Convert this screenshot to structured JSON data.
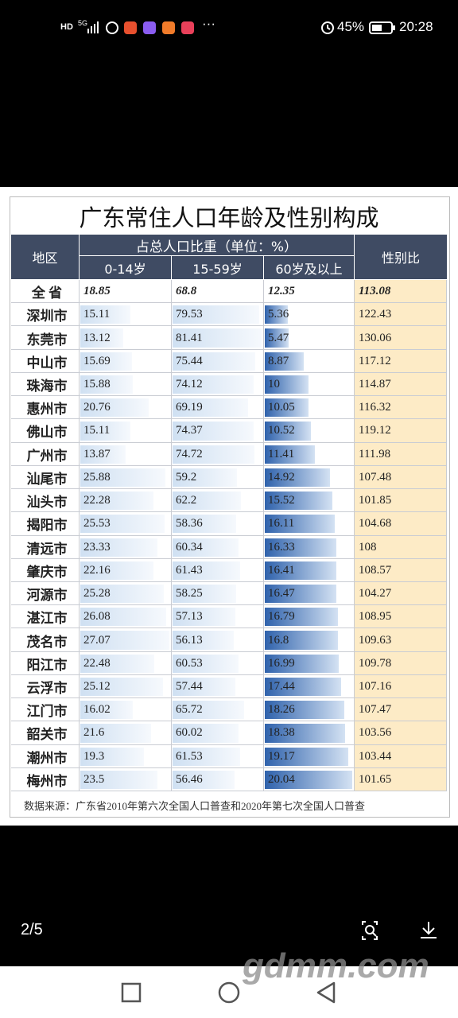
{
  "status_bar": {
    "hd": "HD",
    "network": "5G",
    "more": "···",
    "battery": "45%",
    "time": "20:28"
  },
  "table": {
    "title": "广东常住人口年龄及性别构成",
    "header": {
      "region": "地区",
      "group": "占总人口比重（单位：%）",
      "columns": [
        "0-14岁",
        "15-59岁",
        "60岁及以上"
      ],
      "sex_ratio": "性别比"
    },
    "rows": [
      [
        "全 省",
        18.85,
        68.8,
        12.35,
        113.08
      ],
      [
        "深圳市",
        15.11,
        79.53,
        5.36,
        122.43
      ],
      [
        "东莞市",
        13.12,
        81.41,
        5.47,
        130.06
      ],
      [
        "中山市",
        15.69,
        75.44,
        8.87,
        117.12
      ],
      [
        "珠海市",
        15.88,
        74.12,
        10,
        114.87
      ],
      [
        "惠州市",
        20.76,
        69.19,
        10.05,
        116.32
      ],
      [
        "佛山市",
        15.11,
        74.37,
        10.52,
        119.12
      ],
      [
        "广州市",
        13.87,
        74.72,
        11.41,
        111.98
      ],
      [
        "汕尾市",
        25.88,
        59.2,
        14.92,
        107.48
      ],
      [
        "汕头市",
        22.28,
        62.2,
        15.52,
        101.85
      ],
      [
        "揭阳市",
        25.53,
        58.36,
        16.11,
        104.68
      ],
      [
        "清远市",
        23.33,
        60.34,
        16.33,
        108
      ],
      [
        "肇庆市",
        22.16,
        61.43,
        16.41,
        108.57
      ],
      [
        "河源市",
        25.28,
        58.25,
        16.47,
        104.27
      ],
      [
        "湛江市",
        26.08,
        57.13,
        16.79,
        108.95
      ],
      [
        "茂名市",
        27.07,
        56.13,
        16.8,
        109.63
      ],
      [
        "阳江市",
        22.48,
        60.53,
        16.99,
        109.78
      ],
      [
        "云浮市",
        25.12,
        57.44,
        17.44,
        107.16
      ],
      [
        "江门市",
        16.02,
        65.72,
        18.26,
        107.47
      ],
      [
        "韶关市",
        21.6,
        60.02,
        18.38,
        103.56
      ],
      [
        "潮州市",
        19.3,
        61.53,
        19.17,
        103.44
      ],
      [
        "梅州市",
        23.5,
        56.46,
        20.04,
        101.65
      ]
    ],
    "source": "数据来源：广东省2010年第六次全国人口普查和2020年第七次全国人口普查"
  },
  "viewer": {
    "page": "2/5",
    "watermark": "gdmm.com"
  }
}
